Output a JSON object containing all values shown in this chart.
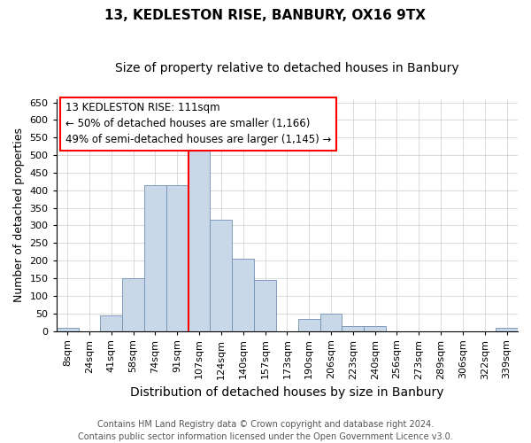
{
  "title": "13, KEDLESTON RISE, BANBURY, OX16 9TX",
  "subtitle": "Size of property relative to detached houses in Banbury",
  "xlabel": "Distribution of detached houses by size in Banbury",
  "ylabel": "Number of detached properties",
  "footer_lines": [
    "Contains HM Land Registry data © Crown copyright and database right 2024.",
    "Contains public sector information licensed under the Open Government Licence v3.0."
  ],
  "bin_labels": [
    "8sqm",
    "24sqm",
    "41sqm",
    "58sqm",
    "74sqm",
    "91sqm",
    "107sqm",
    "124sqm",
    "140sqm",
    "157sqm",
    "173sqm",
    "190sqm",
    "206sqm",
    "223sqm",
    "240sqm",
    "256sqm",
    "273sqm",
    "289sqm",
    "306sqm",
    "322sqm",
    "339sqm"
  ],
  "bar_heights": [
    8,
    0,
    45,
    150,
    415,
    415,
    533,
    315,
    205,
    145,
    0,
    35,
    48,
    15,
    15,
    0,
    0,
    0,
    0,
    0,
    8
  ],
  "bar_color": "#c8d8e8",
  "bar_edgecolor": "#7090b0",
  "vline_color": "red",
  "vline_bin_index": 6,
  "annotation_text": "13 KEDLESTON RISE: 111sqm\n← 50% of detached houses are smaller (1,166)\n49% of semi-detached houses are larger (1,145) →",
  "annotation_box_edgecolor": "red",
  "annotation_fontsize": 8.5,
  "ylim": [
    0,
    660
  ],
  "yticks": [
    0,
    50,
    100,
    150,
    200,
    250,
    300,
    350,
    400,
    450,
    500,
    550,
    600,
    650
  ],
  "title_fontsize": 11,
  "subtitle_fontsize": 10,
  "xlabel_fontsize": 10,
  "ylabel_fontsize": 9,
  "tick_fontsize": 8,
  "footer_fontsize": 7,
  "background_color": "#ffffff",
  "plot_background": "#ffffff",
  "grid_color": "#cccccc"
}
